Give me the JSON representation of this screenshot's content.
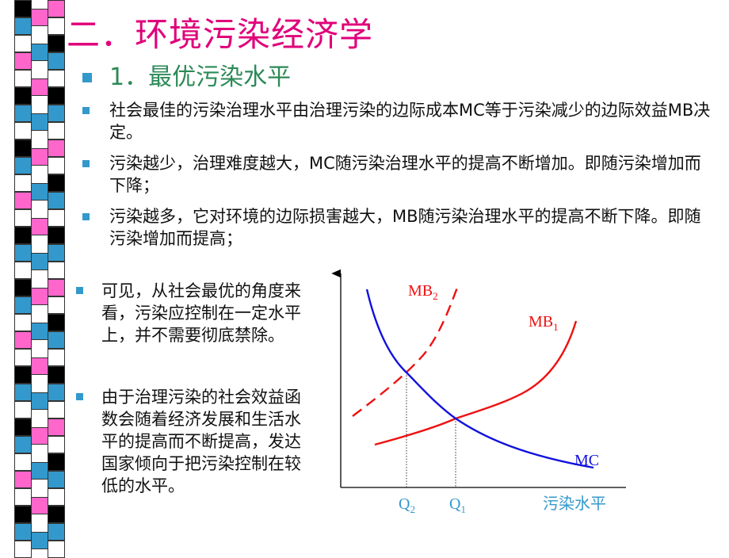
{
  "slide": {
    "title": "二．环境污染经济学",
    "subtitle": "1．最优污染水平",
    "paragraphs": [
      "社会最佳的污染治理水平由治理污染的边际成本MC等于污染减少的边际效益MB决定。",
      "污染越少，治理难度越大，MC随污染治理水平的提高不断增加。即随污染增加而下降；",
      "污染越多，它对环境的边际损害越大，MB随污染治理水平的提高不断下降。即随污染增加而提高；"
    ],
    "left_paragraphs": [
      "可见，从社会最优的角度来看，污染应控制在一定水平上，并不需要彻底禁除。",
      "由于治理污染的社会效益函数会随着经济发展和生活水平的提高而不断提高，发达国家倾向于把污染控制在较低的水平。"
    ]
  },
  "colors": {
    "title": "#e0007a",
    "subtitle": "#2c8a57",
    "bullet": "#3399cc",
    "mb_curve": "#ee1111",
    "mc_curve": "#1111dd",
    "axis_label": "#3399cc"
  },
  "chart_data": {
    "type": "line",
    "xlabel": "污染水平",
    "x_ticks": [
      {
        "label": "Q",
        "sub": "2"
      },
      {
        "label": "Q",
        "sub": "1"
      }
    ],
    "series": [
      {
        "name": "MC",
        "label": "MC",
        "sub": "",
        "style": "solid",
        "color": "#1111dd"
      },
      {
        "name": "MB1",
        "label": "MB",
        "sub": "1",
        "style": "solid",
        "color": "#ee1111"
      },
      {
        "name": "MB2",
        "label": "MB",
        "sub": "2",
        "style": "dashed",
        "color": "#ee1111"
      }
    ]
  }
}
